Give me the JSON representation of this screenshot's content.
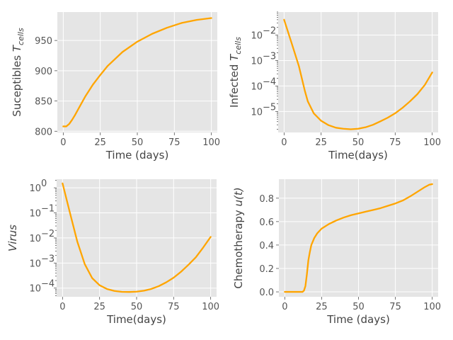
{
  "chart_data": [
    {
      "type": "line",
      "xlabel": "Time (days)",
      "ylabel": "Suceptibles T",
      "ylabel_sub": "cells",
      "yscale": "linear",
      "xlim": [
        -4,
        104
      ],
      "ylim": [
        798,
        997
      ],
      "xticks": [
        0,
        25,
        50,
        75,
        100
      ],
      "yticks": [
        800,
        850,
        900,
        950
      ],
      "grid": true,
      "color": "#ffa500",
      "x": [
        0,
        2,
        4,
        6,
        8,
        10,
        15,
        20,
        25,
        30,
        40,
        50,
        60,
        70,
        80,
        90,
        100
      ],
      "y": [
        808,
        808,
        812,
        819,
        827,
        836,
        858,
        877,
        893,
        908,
        931,
        948,
        961,
        971,
        979,
        984,
        987
      ]
    },
    {
      "type": "line",
      "xlabel": "Time(days)",
      "ylabel": "Infected T",
      "ylabel_sub": "cells",
      "yscale": "log",
      "xlim": [
        -4,
        104
      ],
      "ylim": [
        1.5e-06,
        0.08
      ],
      "xticks": [
        0,
        25,
        50,
        75,
        100
      ],
      "yticks": [
        1e-05,
        0.0001,
        0.001,
        0.01
      ],
      "ytick_labels": [
        "10",
        "10",
        "10",
        "10"
      ],
      "ytick_exponents": [
        "−5",
        "−4",
        "−3",
        "−2"
      ],
      "grid": true,
      "color": "#ffa500",
      "x": [
        0,
        5,
        10,
        14,
        16,
        20,
        25,
        30,
        35,
        40,
        45,
        50,
        55,
        60,
        65,
        70,
        75,
        80,
        85,
        90,
        95,
        100
      ],
      "y": [
        0.04,
        0.005,
        0.0006,
        6.5e-05,
        2.5e-05,
        8.5e-06,
        4.3e-06,
        2.9e-06,
        2.3e-06,
        2.1e-06,
        2e-06,
        2.1e-06,
        2.4e-06,
        3e-06,
        4.1e-06,
        5.7e-06,
        8.5e-06,
        1.4e-05,
        2.5e-05,
        4.8e-05,
        0.00011,
        0.00034
      ]
    },
    {
      "type": "line",
      "xlabel": "Time(days)",
      "ylabel": "Virus",
      "yscale": "log",
      "xlim": [
        -4,
        104
      ],
      "ylim": [
        4.5e-05,
        2.2
      ],
      "xticks": [
        0,
        25,
        50,
        75,
        100
      ],
      "yticks": [
        0.0001,
        0.001,
        0.01,
        0.1,
        1
      ],
      "ytick_labels": [
        "10",
        "10",
        "10",
        "10",
        "10"
      ],
      "ytick_exponents": [
        "−4",
        "−3",
        "−2",
        "−1",
        "0"
      ],
      "grid": true,
      "color": "#ffa500",
      "x": [
        0,
        5,
        10,
        15,
        20,
        25,
        30,
        35,
        40,
        45,
        50,
        55,
        60,
        65,
        70,
        75,
        80,
        85,
        90,
        95,
        100
      ],
      "y": [
        1.5,
        0.1,
        0.007,
        0.0009,
        0.00025,
        0.00013,
        9.2e-05,
        7.7e-05,
        7.1e-05,
        7e-05,
        7.2e-05,
        7.9e-05,
        9.3e-05,
        0.00012,
        0.00017,
        0.00026,
        0.00045,
        0.00085,
        0.0017,
        0.0042,
        0.011
      ]
    },
    {
      "type": "line",
      "xlabel": "Time (days)",
      "ylabel": "Chemotherapy  u(t)",
      "yscale": "linear",
      "xlim": [
        -4,
        104
      ],
      "ylim": [
        -0.042,
        0.962
      ],
      "xticks": [
        0,
        25,
        50,
        75,
        100
      ],
      "yticks": [
        0.0,
        0.2,
        0.4,
        0.6,
        0.8
      ],
      "ytick_labels": [
        "0.0",
        "0.2",
        "0.4",
        "0.6",
        "0.8"
      ],
      "grid": true,
      "color": "#ffa500",
      "x": [
        0,
        12,
        13,
        14,
        15,
        16,
        17,
        18,
        20,
        22,
        25,
        30,
        35,
        40,
        45,
        50,
        55,
        60,
        65,
        70,
        75,
        80,
        85,
        90,
        95,
        98,
        100
      ],
      "y": [
        0.0,
        0.0,
        0.01,
        0.05,
        0.15,
        0.27,
        0.34,
        0.4,
        0.46,
        0.5,
        0.54,
        0.58,
        0.61,
        0.635,
        0.655,
        0.67,
        0.685,
        0.7,
        0.715,
        0.735,
        0.755,
        0.78,
        0.815,
        0.855,
        0.895,
        0.915,
        0.92
      ]
    }
  ]
}
